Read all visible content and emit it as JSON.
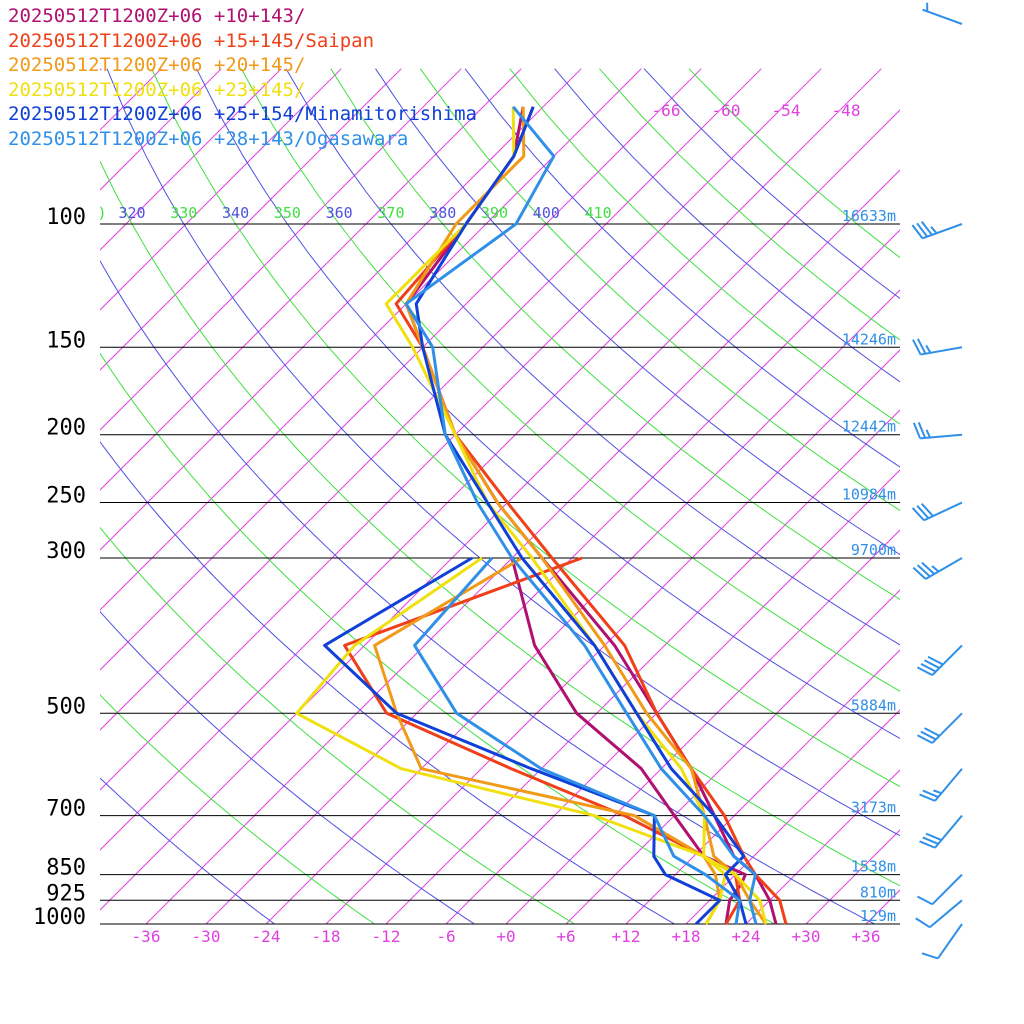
{
  "chart_data": {
    "type": "skew-t sounding",
    "title": "",
    "xlabel": "",
    "ylabel": "",
    "pressure_labels": [
      "100",
      "150",
      "200",
      "250",
      "300",
      "500",
      "700",
      "850",
      "925",
      "1000"
    ],
    "temperature_ticks": [
      "-36",
      "-30",
      "-24",
      "-18",
      "-12",
      "-6",
      "+0",
      "+6",
      "+12",
      "+18",
      "+24",
      "+30",
      "+36"
    ],
    "isotherm_labels": [
      "-66",
      "-60",
      "-54",
      "-48"
    ],
    "theta_labels": [
      ")",
      "320",
      "330",
      "340",
      "350",
      "360",
      "370",
      "380",
      "390",
      "400",
      "410"
    ],
    "height_labels": [
      {
        "p": 100,
        "text": "16633m"
      },
      {
        "p": 150,
        "text": "14246m"
      },
      {
        "p": 200,
        "text": "12442m"
      },
      {
        "p": 250,
        "text": "10984m"
      },
      {
        "p": 300,
        "text": "9700m"
      },
      {
        "p": 500,
        "text": "5884m"
      },
      {
        "p": 700,
        "text": "3173m"
      },
      {
        "p": 850,
        "text": "1538m"
      },
      {
        "p": 925,
        "text": "810m"
      },
      {
        "p": 1000,
        "text": "129m"
      }
    ],
    "series": [
      {
        "name": "20250512T1200Z+06 +10+143/",
        "color": "#b01070",
        "temperature": [
          [
            68,
            -80
          ],
          [
            80,
            -76
          ],
          [
            100,
            -74
          ],
          [
            130,
            -72
          ],
          [
            150,
            -66
          ],
          [
            200,
            -54
          ],
          [
            250,
            -43
          ],
          [
            300,
            -33
          ],
          [
            400,
            -17
          ],
          [
            500,
            -6
          ],
          [
            600,
            3
          ],
          [
            700,
            10
          ],
          [
            800,
            16
          ],
          [
            850,
            20
          ],
          [
            925,
            24
          ],
          [
            1000,
            27
          ]
        ],
        "dewpoint": [
          [
            300,
            -36
          ],
          [
            400,
            -25
          ],
          [
            500,
            -14
          ],
          [
            600,
            -2
          ],
          [
            700,
            6
          ],
          [
            800,
            13
          ],
          [
            850,
            19
          ],
          [
            875,
            19.5
          ],
          [
            925,
            20
          ],
          [
            1000,
            22
          ]
        ]
      },
      {
        "name": "20250512T1200Z+06 +15+145/Saipan",
        "color": "#f0401a",
        "temperature": [
          [
            68,
            -79
          ],
          [
            80,
            -76
          ],
          [
            100,
            -74
          ],
          [
            130,
            -73
          ],
          [
            150,
            -66
          ],
          [
            200,
            -54
          ],
          [
            250,
            -42
          ],
          [
            300,
            -32
          ],
          [
            400,
            -16
          ],
          [
            500,
            -6
          ],
          [
            600,
            3
          ],
          [
            700,
            11
          ],
          [
            800,
            17
          ],
          [
            850,
            20
          ],
          [
            925,
            25
          ],
          [
            1000,
            28
          ]
        ],
        "dewpoint": [
          [
            300,
            -29
          ],
          [
            400,
            -44
          ],
          [
            500,
            -33
          ],
          [
            600,
            -15
          ],
          [
            700,
            1
          ],
          [
            800,
            13
          ],
          [
            850,
            18
          ],
          [
            925,
            21
          ],
          [
            1000,
            22
          ]
        ]
      },
      {
        "name": "20250512T1200Z+06 +20+145/",
        "color": "#f09a18",
        "temperature": [
          [
            68,
            -80
          ],
          [
            80,
            -75
          ],
          [
            100,
            -75
          ],
          [
            130,
            -72
          ],
          [
            150,
            -66
          ],
          [
            200,
            -54
          ],
          [
            250,
            -43
          ],
          [
            300,
            -33
          ],
          [
            400,
            -18
          ],
          [
            500,
            -7
          ],
          [
            600,
            3
          ],
          [
            700,
            9
          ],
          [
            800,
            14
          ],
          [
            850,
            18
          ],
          [
            925,
            22
          ],
          [
            1000,
            26
          ]
        ],
        "dewpoint": [
          [
            300,
            -35
          ],
          [
            400,
            -41
          ],
          [
            500,
            -32
          ],
          [
            600,
            -24
          ],
          [
            700,
            2
          ],
          [
            800,
            13
          ],
          [
            850,
            16
          ],
          [
            925,
            19
          ],
          [
            1000,
            20
          ]
        ]
      },
      {
        "name": "20250512T1200Z+06 +23+145/",
        "color": "#f0e010",
        "temperature": [
          [
            68,
            -81
          ],
          [
            80,
            -76
          ],
          [
            100,
            -74
          ],
          [
            130,
            -74
          ],
          [
            150,
            -67
          ],
          [
            200,
            -54
          ],
          [
            250,
            -44
          ],
          [
            300,
            -34
          ],
          [
            400,
            -19
          ],
          [
            500,
            -8
          ],
          [
            600,
            2
          ],
          [
            700,
            9
          ],
          [
            800,
            13
          ],
          [
            850,
            18
          ],
          [
            925,
            23
          ],
          [
            1000,
            26
          ]
        ],
        "dewpoint": [
          [
            300,
            -39
          ],
          [
            400,
            -43
          ],
          [
            500,
            -42
          ],
          [
            600,
            -26
          ],
          [
            700,
            -2
          ],
          [
            800,
            13
          ],
          [
            850,
            17
          ],
          [
            925,
            19
          ],
          [
            1000,
            20
          ]
        ]
      },
      {
        "name": "20250512T1200Z+06 +25+154/Minamitorishima",
        "color": "#1040d8",
        "temperature": [
          [
            68,
            -79
          ],
          [
            80,
            -76
          ],
          [
            100,
            -74
          ],
          [
            130,
            -71
          ],
          [
            150,
            -66
          ],
          [
            200,
            -55
          ],
          [
            250,
            -44
          ],
          [
            300,
            -35
          ],
          [
            400,
            -19
          ],
          [
            500,
            -8
          ],
          [
            600,
            1
          ],
          [
            700,
            10
          ],
          [
            800,
            17
          ],
          [
            850,
            17
          ],
          [
            925,
            21
          ],
          [
            1000,
            24
          ]
        ],
        "dewpoint": [
          [
            300,
            -40
          ],
          [
            400,
            -46
          ],
          [
            500,
            -32
          ],
          [
            600,
            -13
          ],
          [
            700,
            4
          ],
          [
            800,
            8
          ],
          [
            850,
            11
          ],
          [
            925,
            19
          ],
          [
            1000,
            19
          ]
        ]
      },
      {
        "name": "20250512T1200Z+06 +28+143/Ogasawara",
        "color": "#3090e8",
        "temperature": [
          [
            68,
            -81
          ],
          [
            80,
            -72
          ],
          [
            100,
            -69
          ],
          [
            130,
            -72
          ],
          [
            150,
            -65
          ],
          [
            200,
            -55
          ],
          [
            250,
            -45
          ],
          [
            300,
            -36
          ],
          [
            400,
            -20
          ],
          [
            500,
            -9
          ],
          [
            600,
            0
          ],
          [
            700,
            9
          ],
          [
            800,
            16
          ],
          [
            850,
            20
          ],
          [
            925,
            22
          ],
          [
            1000,
            25
          ]
        ],
        "dewpoint": [
          [
            300,
            -38
          ],
          [
            400,
            -37
          ],
          [
            500,
            -26
          ],
          [
            600,
            -12
          ],
          [
            700,
            4
          ],
          [
            800,
            10
          ],
          [
            850,
            15
          ],
          [
            925,
            21
          ],
          [
            1000,
            23
          ]
        ]
      }
    ],
    "wind_barbs": [
      {
        "p": 70,
        "dir": 290,
        "speed": 5
      },
      {
        "p": 100,
        "dir": 250,
        "speed": 35
      },
      {
        "p": 150,
        "dir": 260,
        "speed": 25
      },
      {
        "p": 200,
        "dir": 265,
        "speed": 25
      },
      {
        "p": 250,
        "dir": 245,
        "speed": 30
      },
      {
        "p": 300,
        "dir": 240,
        "speed": 35
      },
      {
        "p": 400,
        "dir": 225,
        "speed": 40
      },
      {
        "p": 500,
        "dir": 225,
        "speed": 30
      },
      {
        "p": 600,
        "dir": 220,
        "speed": 25
      },
      {
        "p": 700,
        "dir": 220,
        "speed": 30
      },
      {
        "p": 850,
        "dir": 225,
        "speed": 10
      },
      {
        "p": 925,
        "dir": 230,
        "speed": 10
      },
      {
        "p": 1000,
        "dir": 215,
        "speed": 10
      }
    ],
    "xlim": [
      -40,
      40
    ],
    "ylim": [
      1000,
      100
    ],
    "colors": {
      "isotherm": "#e040e0",
      "dry_adiabat_a": "#5050e0",
      "dry_adiabat_b": "#40e040",
      "barb": "#3090e8",
      "height_label": "#3090e8",
      "isobar": "#000000"
    }
  }
}
